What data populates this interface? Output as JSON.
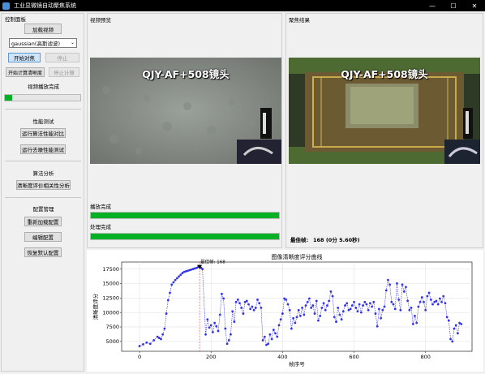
{
  "window": {
    "title": "工业显微镜自动聚焦系统",
    "minimize": "—",
    "maximize": "☐",
    "close": "✕"
  },
  "left_panel": {
    "title": "控制面板",
    "load_video": "加载视频",
    "algorithm_selected": "gaussian(高斯滤波)",
    "start_focus": "开始对焦",
    "stop": "停止",
    "start_clarity": "开始计算清晰度",
    "stop_calc": "停止计算",
    "video_status": "视频播放完成",
    "video_progress": 0.1,
    "perf_title": "性能测试",
    "run_perf_compare": "运行算法性能对比",
    "run_denoise_test": "运行去噪性能测试",
    "analysis_title": "算法分析",
    "clarity_analysis": "清晰度评价相关性分析",
    "config_title": "配置管理",
    "reload_config": "重新加载配置",
    "edit_config": "编辑配置",
    "restore_default": "恢复默认配置"
  },
  "video_panel": {
    "title": "视频预览",
    "overlay": "QJY-AF+508镜头",
    "play_status": "播放完成",
    "play_progress": 1.0,
    "process_status": "处理完成",
    "process_progress": 1.0
  },
  "focus_panel": {
    "title": "聚焦结果",
    "overlay": "QJY-AF+508镜头",
    "best_frame_label": "最佳帧:",
    "best_frame_value": "168 (0分 5.60秒)"
  },
  "colors": {
    "accent": "#06b025",
    "series": "#3333ee",
    "marker": "#000000"
  },
  "chart_data": {
    "type": "line",
    "title": "图像清晰度评分曲线",
    "xlabel": "帧序号",
    "ylabel": "清晰度评分",
    "xlim": [
      -50,
      930
    ],
    "ylim": [
      3300,
      18700
    ],
    "xticks": [
      0,
      200,
      400,
      600,
      800
    ],
    "yticks": [
      5000,
      7500,
      10000,
      12500,
      15000,
      17500
    ],
    "grid": true,
    "annotation": {
      "text": "最佳帧: 168",
      "x": 168,
      "y": 18050
    },
    "series": [
      {
        "values": [
          [
            0,
            4200
          ],
          [
            10,
            4500
          ],
          [
            20,
            4800
          ],
          [
            30,
            4600
          ],
          [
            40,
            5200
          ],
          [
            50,
            5800
          ],
          [
            55,
            5600
          ],
          [
            60,
            5400
          ],
          [
            65,
            6200
          ],
          [
            70,
            7200
          ],
          [
            75,
            9800
          ],
          [
            80,
            12100
          ],
          [
            85,
            13400
          ],
          [
            90,
            14800
          ],
          [
            95,
            15200
          ],
          [
            100,
            15600
          ],
          [
            105,
            15900
          ],
          [
            110,
            16200
          ],
          [
            115,
            16500
          ],
          [
            120,
            16800
          ],
          [
            125,
            17000
          ],
          [
            130,
            17100
          ],
          [
            135,
            17200
          ],
          [
            140,
            17300
          ],
          [
            145,
            17400
          ],
          [
            150,
            17500
          ],
          [
            155,
            17600
          ],
          [
            160,
            17700
          ],
          [
            165,
            17900
          ],
          [
            168,
            18050
          ],
          [
            172,
            17700
          ],
          [
            176,
            17500
          ],
          [
            185,
            6200
          ],
          [
            190,
            8800
          ],
          [
            195,
            7400
          ],
          [
            200,
            7800
          ],
          [
            205,
            6600
          ],
          [
            210,
            8200
          ],
          [
            215,
            7600
          ],
          [
            220,
            6800
          ],
          [
            225,
            9600
          ],
          [
            230,
            13200
          ],
          [
            235,
            12400
          ],
          [
            240,
            7200
          ],
          [
            245,
            4600
          ],
          [
            250,
            5200
          ],
          [
            255,
            6200
          ],
          [
            260,
            10200
          ],
          [
            265,
            8400
          ],
          [
            270,
            11800
          ],
          [
            275,
            12200
          ],
          [
            280,
            11600
          ],
          [
            285,
            10800
          ],
          [
            290,
            9800
          ],
          [
            295,
            11800
          ],
          [
            300,
            12000
          ],
          [
            305,
            11400
          ],
          [
            310,
            10600
          ],
          [
            315,
            11000
          ],
          [
            320,
            10400
          ],
          [
            325,
            10800
          ],
          [
            330,
            12200
          ],
          [
            335,
            11600
          ],
          [
            340,
            10800
          ],
          [
            345,
            5200
          ],
          [
            350,
            5800
          ],
          [
            355,
            4400
          ],
          [
            360,
            4600
          ],
          [
            365,
            6200
          ],
          [
            370,
            5400
          ],
          [
            375,
            7000
          ],
          [
            380,
            6400
          ],
          [
            385,
            5800
          ],
          [
            390,
            7800
          ],
          [
            395,
            8800
          ],
          [
            400,
            9800
          ],
          [
            405,
            12400
          ],
          [
            410,
            12200
          ],
          [
            415,
            11400
          ],
          [
            420,
            10400
          ],
          [
            425,
            7200
          ],
          [
            430,
            9000
          ],
          [
            435,
            8200
          ],
          [
            440,
            9200
          ],
          [
            445,
            10400
          ],
          [
            450,
            9400
          ],
          [
            455,
            10800
          ],
          [
            460,
            9600
          ],
          [
            465,
            11200
          ],
          [
            470,
            11800
          ],
          [
            475,
            12400
          ],
          [
            480,
            10800
          ],
          [
            485,
            11200
          ],
          [
            490,
            9800
          ],
          [
            495,
            12000
          ],
          [
            500,
            8600
          ],
          [
            505,
            9400
          ],
          [
            510,
            10800
          ],
          [
            515,
            11600
          ],
          [
            520,
            10400
          ],
          [
            525,
            11200
          ],
          [
            530,
            12000
          ],
          [
            535,
            13600
          ],
          [
            540,
            12800
          ],
          [
            545,
            9200
          ],
          [
            550,
            8400
          ],
          [
            555,
            10800
          ],
          [
            560,
            9600
          ],
          [
            565,
            8800
          ],
          [
            570,
            10200
          ],
          [
            575,
            11200
          ],
          [
            580,
            11600
          ],
          [
            585,
            10400
          ],
          [
            590,
            10600
          ],
          [
            595,
            11200
          ],
          [
            600,
            11800
          ],
          [
            605,
            10800
          ],
          [
            610,
            10200
          ],
          [
            615,
            11400
          ],
          [
            620,
            10000
          ],
          [
            625,
            11200
          ],
          [
            630,
            11800
          ],
          [
            635,
            11400
          ],
          [
            640,
            10400
          ],
          [
            645,
            11600
          ],
          [
            650,
            11000
          ],
          [
            655,
            11800
          ],
          [
            660,
            9800
          ],
          [
            665,
            7600
          ],
          [
            670,
            10600
          ],
          [
            675,
            9000
          ],
          [
            680,
            10400
          ],
          [
            685,
            11000
          ],
          [
            690,
            13800
          ],
          [
            695,
            15600
          ],
          [
            700,
            14800
          ],
          [
            705,
            11800
          ],
          [
            710,
            11400
          ],
          [
            715,
            10600
          ],
          [
            720,
            15000
          ],
          [
            725,
            12200
          ],
          [
            730,
            10400
          ],
          [
            735,
            14800
          ],
          [
            740,
            13600
          ],
          [
            745,
            14400
          ],
          [
            750,
            12000
          ],
          [
            755,
            10400
          ],
          [
            760,
            10800
          ],
          [
            765,
            8000
          ],
          [
            770,
            9400
          ],
          [
            775,
            8200
          ],
          [
            780,
            11000
          ],
          [
            785,
            11800
          ],
          [
            790,
            12600
          ],
          [
            795,
            11800
          ],
          [
            800,
            10400
          ],
          [
            805,
            12800
          ],
          [
            810,
            13400
          ],
          [
            815,
            12200
          ],
          [
            820,
            11400
          ],
          [
            825,
            11800
          ],
          [
            830,
            12000
          ],
          [
            835,
            11400
          ],
          [
            840,
            12400
          ],
          [
            845,
            11800
          ],
          [
            850,
            12800
          ],
          [
            855,
            11600
          ],
          [
            860,
            9200
          ],
          [
            865,
            8600
          ],
          [
            870,
            5400
          ],
          [
            875,
            5000
          ],
          [
            880,
            7200
          ],
          [
            885,
            7800
          ],
          [
            890,
            6400
          ],
          [
            895,
            8200
          ],
          [
            900,
            8000
          ]
        ]
      }
    ]
  }
}
